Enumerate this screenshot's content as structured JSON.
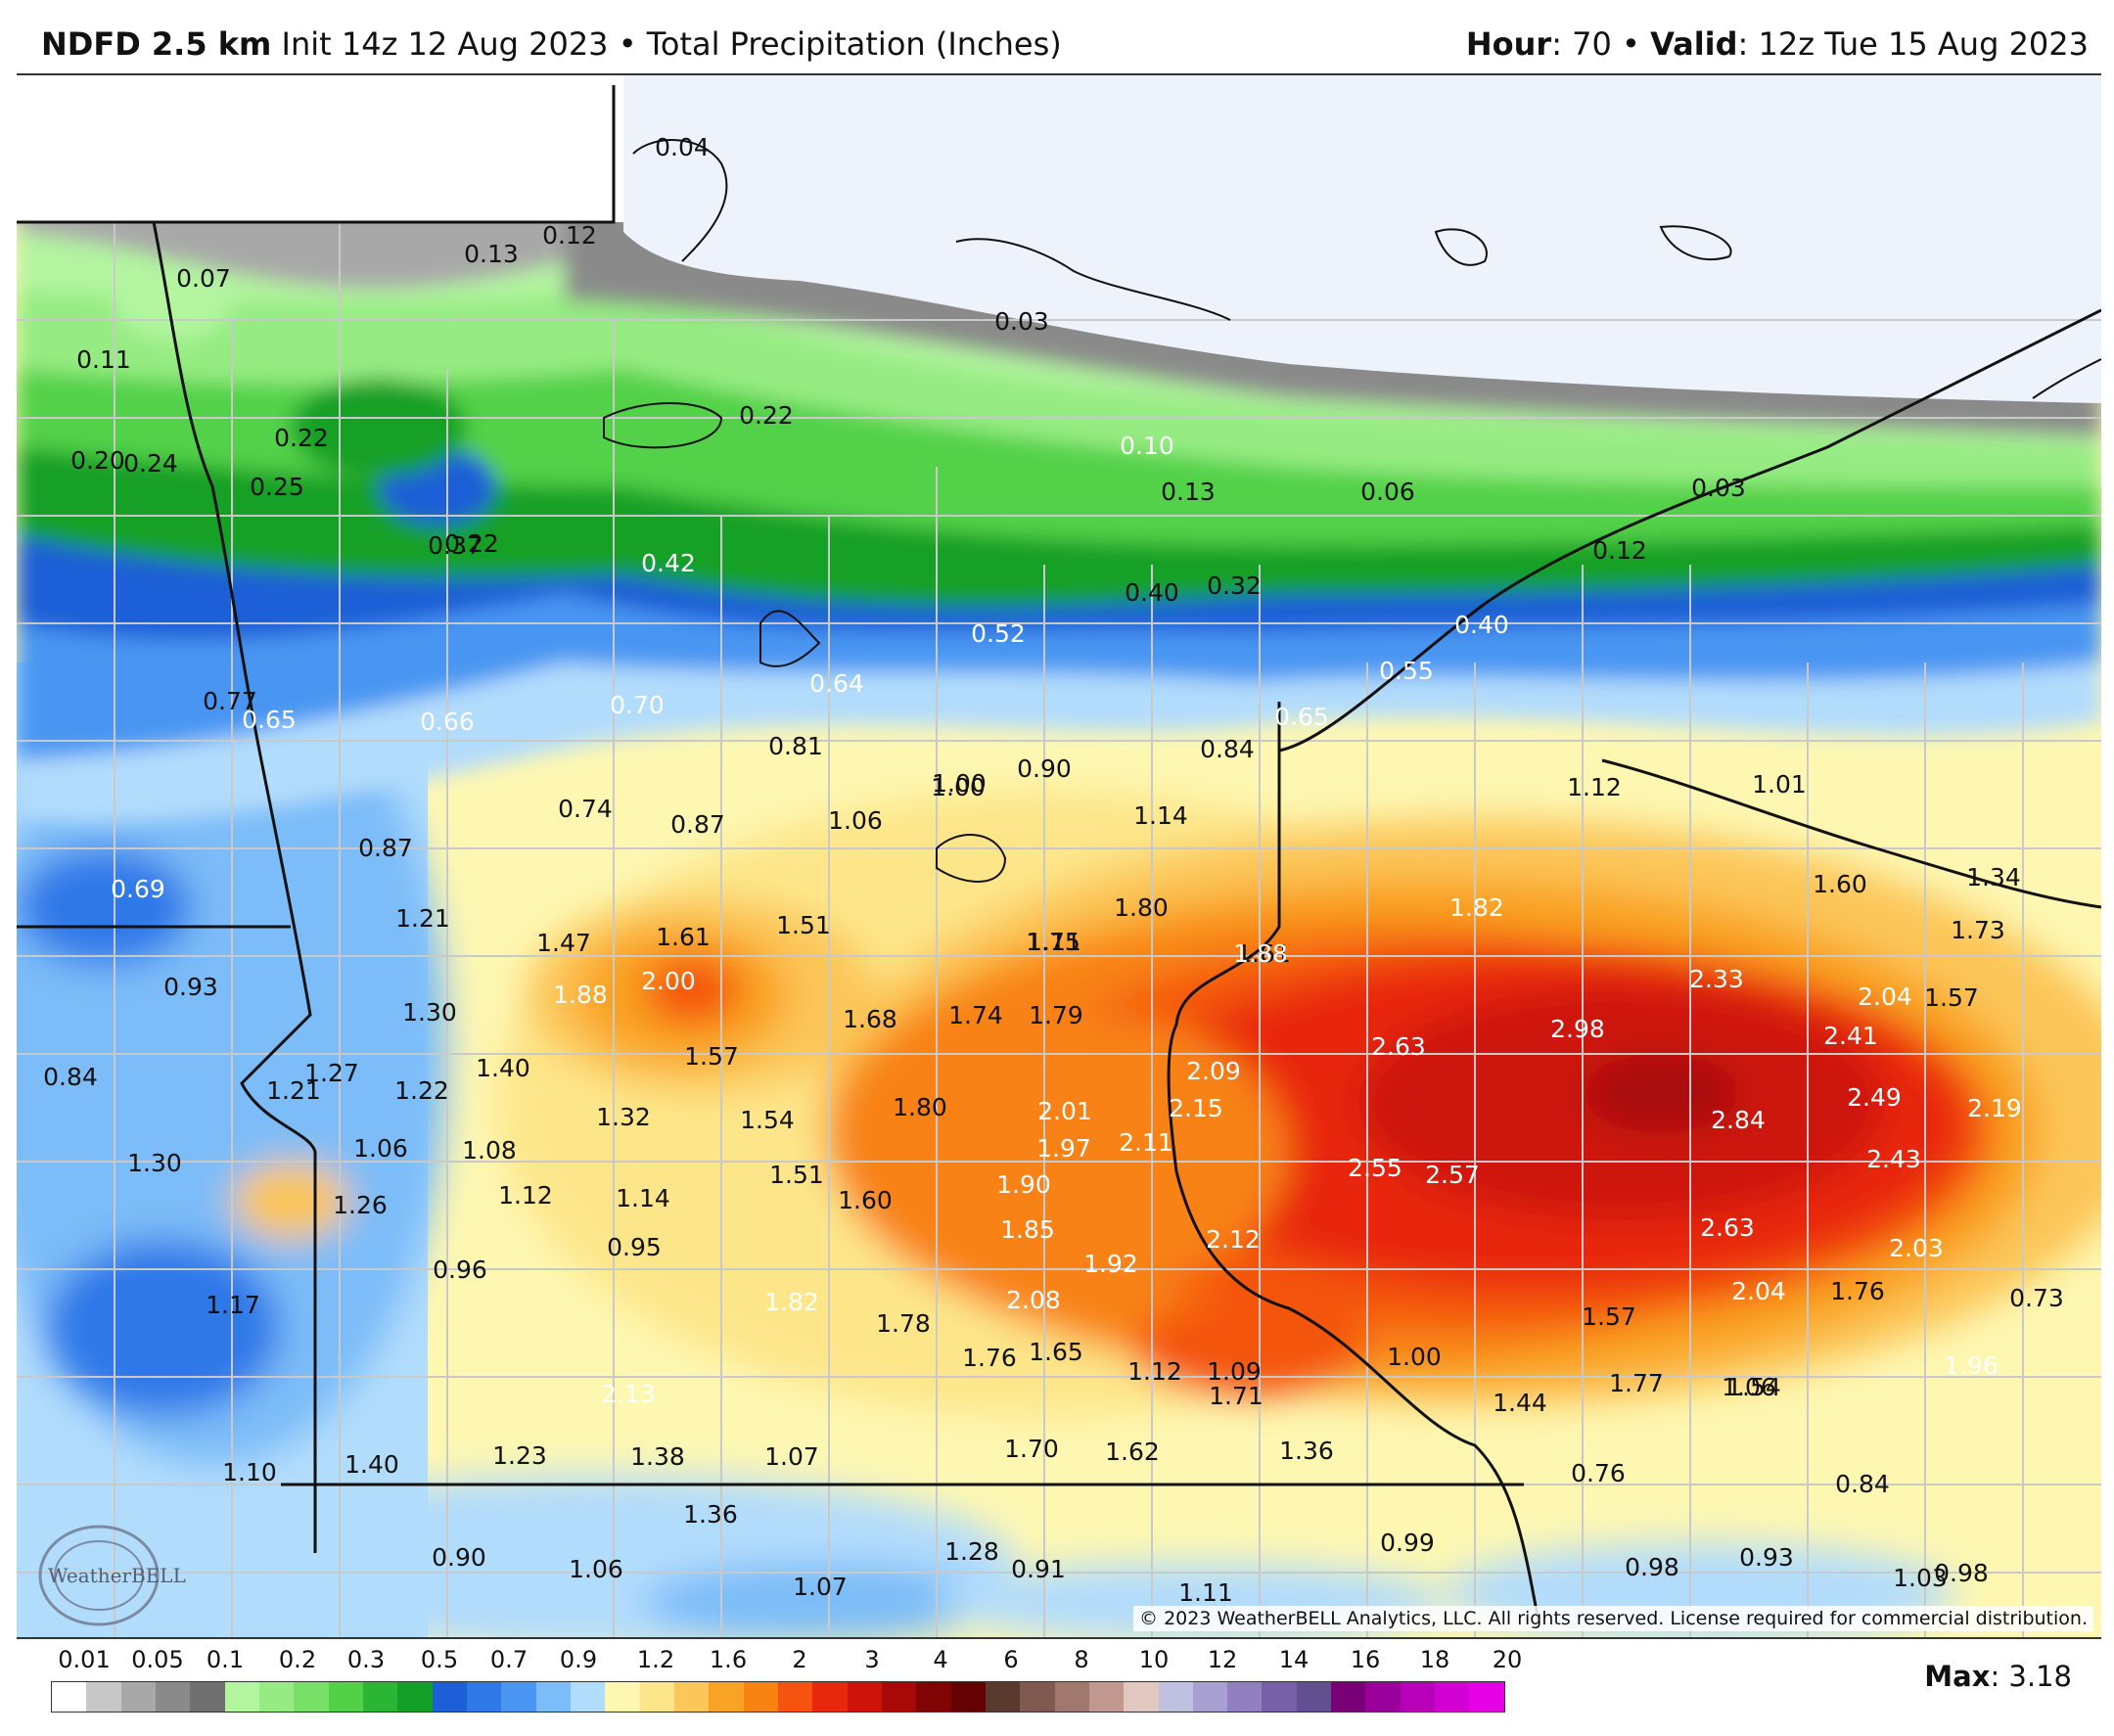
{
  "header": {
    "model": "NDFD 2.5 km",
    "init": "Init 14z 12 Aug 2023",
    "sep": "•",
    "field": "Total Precipitation (Inches)",
    "hour_label": "Hour",
    "hour_value": ": 70",
    "valid_label": "Valid",
    "valid_value": ": 12z Tue 15 Aug 2023"
  },
  "map": {
    "region": "Upper Midwest (Minnesota, Wisconsin, Dakotas, Iowa)",
    "copyright": "© 2023 WeatherBELL Analytics, LLC. All rights reserved. License required for commercial distribution.",
    "logo_text": "WeatherBELL",
    "labels": [
      {
        "t": "0.04",
        "light": false
      },
      {
        "t": "0.13",
        "light": false
      },
      {
        "t": "0.12",
        "light": false
      },
      {
        "t": "0.07",
        "light": false
      },
      {
        "t": "0.11",
        "light": false
      },
      {
        "t": "0.03",
        "light": false
      },
      {
        "t": "0.22",
        "light": false
      },
      {
        "t": "0.20",
        "light": false
      },
      {
        "t": "0.24",
        "light": false
      },
      {
        "t": "0.22",
        "light": false
      },
      {
        "t": "0.25",
        "light": false
      },
      {
        "t": "0.10",
        "light": true
      },
      {
        "t": "0.13",
        "light": false
      },
      {
        "t": "0.06",
        "light": false
      },
      {
        "t": "0.03",
        "light": false
      },
      {
        "t": "0.22",
        "light": false
      },
      {
        "t": "0.37",
        "light": false
      },
      {
        "t": "0.42",
        "light": true
      },
      {
        "t": "0.40",
        "light": false
      },
      {
        "t": "0.32",
        "light": false
      },
      {
        "t": "0.12",
        "light": false
      },
      {
        "t": "0.40",
        "light": true
      },
      {
        "t": "0.52",
        "light": true
      },
      {
        "t": "0.55",
        "light": true
      },
      {
        "t": "0.64",
        "light": true
      },
      {
        "t": "0.77",
        "light": false
      },
      {
        "t": "0.65",
        "light": true
      },
      {
        "t": "0.66",
        "light": true
      },
      {
        "t": "0.70",
        "light": true
      },
      {
        "t": "0.65",
        "light": true
      },
      {
        "t": "0.84",
        "light": false
      },
      {
        "t": "0.81",
        "light": false
      },
      {
        "t": "0.90",
        "light": false
      },
      {
        "t": "1.00",
        "light": false
      },
      {
        "t": "1.12",
        "light": false
      },
      {
        "t": "1.01",
        "light": false
      },
      {
        "t": "0.74",
        "light": false
      },
      {
        "t": "0.87",
        "light": false
      },
      {
        "t": "1.06",
        "light": false
      },
      {
        "t": "1.14",
        "light": false
      },
      {
        "t": "1.00",
        "light": false
      },
      {
        "t": "0.87",
        "light": false
      },
      {
        "t": "0.69",
        "light": true
      },
      {
        "t": "1.60",
        "light": false
      },
      {
        "t": "1.34",
        "light": false
      },
      {
        "t": "1.21",
        "light": false
      },
      {
        "t": "1.47",
        "light": false
      },
      {
        "t": "1.61",
        "light": false
      },
      {
        "t": "1.51",
        "light": false
      },
      {
        "t": "1.80",
        "light": false
      },
      {
        "t": "1.82",
        "light": true
      },
      {
        "t": "1.73",
        "light": false
      },
      {
        "t": "1.57",
        "light": false
      },
      {
        "t": "1.75",
        "light": false
      },
      {
        "t": "1.11",
        "light": false
      },
      {
        "t": "1.61",
        "light": false
      },
      {
        "t": "2.00",
        "light": true
      },
      {
        "t": "1.88",
        "light": true
      },
      {
        "t": "1.88",
        "light": true
      },
      {
        "t": "2.33",
        "light": true
      },
      {
        "t": "2.04",
        "light": true
      },
      {
        "t": "0.93",
        "light": false
      },
      {
        "t": "1.30",
        "light": false
      },
      {
        "t": "1.68",
        "light": false
      },
      {
        "t": "1.74",
        "light": false
      },
      {
        "t": "1.79",
        "light": false
      },
      {
        "t": "2.63",
        "light": true
      },
      {
        "t": "2.98",
        "light": true
      },
      {
        "t": "2.41",
        "light": true
      },
      {
        "t": "0.84",
        "light": false
      },
      {
        "t": "1.27",
        "light": false
      },
      {
        "t": "1.40",
        "light": false
      },
      {
        "t": "1.57",
        "light": false
      },
      {
        "t": "2.09",
        "light": true
      },
      {
        "t": "1.21",
        "light": false
      },
      {
        "t": "1.22",
        "light": false
      },
      {
        "t": "2.49",
        "light": true
      },
      {
        "t": "1.32",
        "light": false
      },
      {
        "t": "1.54",
        "light": false
      },
      {
        "t": "1.80",
        "light": false
      },
      {
        "t": "2.01",
        "light": true
      },
      {
        "t": "2.15",
        "light": true
      },
      {
        "t": "2.84",
        "light": true
      },
      {
        "t": "2.19",
        "light": true
      },
      {
        "t": "1.06",
        "light": false
      },
      {
        "t": "1.08",
        "light": false
      },
      {
        "t": "2.11",
        "light": true
      },
      {
        "t": "1.30",
        "light": false
      },
      {
        "t": "1.51",
        "light": false
      },
      {
        "t": "1.97",
        "light": true
      },
      {
        "t": "2.55",
        "light": true
      },
      {
        "t": "2.57",
        "light": true
      },
      {
        "t": "2.43",
        "light": true
      },
      {
        "t": "1.12",
        "light": false
      },
      {
        "t": "1.14",
        "light": false
      },
      {
        "t": "1.60",
        "light": false
      },
      {
        "t": "1.90",
        "light": true
      },
      {
        "t": "1.26",
        "light": false
      },
      {
        "t": "1.85",
        "light": true
      },
      {
        "t": "2.63",
        "light": true
      },
      {
        "t": "2.12",
        "light": true
      },
      {
        "t": "0.95",
        "light": false
      },
      {
        "t": "2.03",
        "light": true
      },
      {
        "t": "0.96",
        "light": false
      },
      {
        "t": "1.92",
        "light": true
      },
      {
        "t": "2.04",
        "light": true
      },
      {
        "t": "1.76",
        "light": false
      },
      {
        "t": "0.73",
        "light": false
      },
      {
        "t": "1.17",
        "light": false
      },
      {
        "t": "1.82",
        "light": true
      },
      {
        "t": "2.08",
        "light": true
      },
      {
        "t": "1.57",
        "light": false
      },
      {
        "t": "1.78",
        "light": false
      },
      {
        "t": "1.76",
        "light": false
      },
      {
        "t": "1.65",
        "light": false
      },
      {
        "t": "1.00",
        "light": false
      },
      {
        "t": "1.06",
        "light": false
      },
      {
        "t": "1.12",
        "light": false
      },
      {
        "t": "1.09",
        "light": false
      },
      {
        "t": "1.96",
        "light": true
      },
      {
        "t": "2.13",
        "light": true
      },
      {
        "t": "1.71",
        "light": false
      },
      {
        "t": "1.44",
        "light": false
      },
      {
        "t": "1.77",
        "light": false
      },
      {
        "t": "1.54",
        "light": false
      },
      {
        "t": "1.70",
        "light": false
      },
      {
        "t": "1.62",
        "light": false
      },
      {
        "t": "1.36",
        "light": false
      },
      {
        "t": "1.23",
        "light": false
      },
      {
        "t": "1.38",
        "light": false
      },
      {
        "t": "1.07",
        "light": false
      },
      {
        "t": "1.10",
        "light": false
      },
      {
        "t": "1.40",
        "light": false
      },
      {
        "t": "0.76",
        "light": false
      },
      {
        "t": "0.84",
        "light": false
      },
      {
        "t": "1.36",
        "light": false
      },
      {
        "t": "1.28",
        "light": false
      },
      {
        "t": "0.99",
        "light": false
      },
      {
        "t": "0.90",
        "light": false
      },
      {
        "t": "1.06",
        "light": false
      },
      {
        "t": "0.91",
        "light": false
      },
      {
        "t": "0.98",
        "light": false
      },
      {
        "t": "0.93",
        "light": false
      },
      {
        "t": "1.03",
        "light": false
      },
      {
        "t": "0.98",
        "light": false
      },
      {
        "t": "1.07",
        "light": false
      },
      {
        "t": "1.11",
        "light": false
      },
      {
        "t": "0.81",
        "light": false
      },
      {
        "t": "1.04",
        "light": false
      }
    ]
  },
  "legend": {
    "ticks": [
      "0.01",
      "0.05",
      "0.1",
      "0.2",
      "0.3",
      "0.5",
      "0.7",
      "0.9",
      "1.2",
      "1.6",
      "2",
      "3",
      "4",
      "6",
      "8",
      "10",
      "12",
      "14",
      "16",
      "18",
      "20"
    ],
    "colors": [
      "#ffffff",
      "#c8c8c8",
      "#a8a8a8",
      "#8a8a8a",
      "#707070",
      "#b4f5a0",
      "#96ec82",
      "#78e066",
      "#52d148",
      "#2ab533",
      "#12a028",
      "#1d5fd6",
      "#2e78e8",
      "#4a96f2",
      "#7cbcf8",
      "#b2dcfc",
      "#fdf7b2",
      "#fde68a",
      "#fcc658",
      "#f9a324",
      "#f88212",
      "#f45410",
      "#e8280c",
      "#cd140a",
      "#a80808",
      "#800404",
      "#650202",
      "#5a3a2e",
      "#805a50",
      "#a0786e",
      "#c09890",
      "#e0c8c0",
      "#c0c0e0",
      "#a8a0d0",
      "#9080c0",
      "#7860a8",
      "#605090",
      "#7a0078",
      "#9a009a",
      "#b800b8",
      "#d200d2",
      "#e600e6"
    ],
    "max_label": "Max",
    "max_value": ": 3.18"
  }
}
